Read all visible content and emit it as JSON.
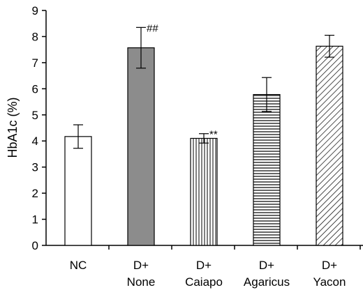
{
  "chart_data": {
    "type": "bar",
    "title": "",
    "xlabel": "",
    "ylabel": "HbA1c (%)",
    "ylim": [
      0,
      9
    ],
    "yticks": [
      "0",
      "1",
      "2",
      "3",
      "4",
      "5",
      "6",
      "7",
      "8",
      "9"
    ],
    "grid": false,
    "legend": "none",
    "categories": [
      {
        "line1": "NC",
        "line2": ""
      },
      {
        "line1": "D+",
        "line2": "None"
      },
      {
        "line1": "D+",
        "line2": "Caiapo"
      },
      {
        "line1": "D+",
        "line2": "Agaricus"
      },
      {
        "line1": "D+",
        "line2": "Yacon"
      }
    ],
    "values": [
      4.17,
      7.57,
      4.1,
      5.78,
      7.63
    ],
    "errors": [
      0.45,
      0.78,
      0.18,
      0.65,
      0.42
    ],
    "fills": [
      "white",
      "solid-gray",
      "vertical-lines",
      "horizontal-lines",
      "diagonal-lines"
    ],
    "annotations": [
      "",
      "##",
      "**",
      "",
      ""
    ],
    "colors": {
      "gray_fill": "#8c8c8c",
      "stroke": "#000000"
    }
  }
}
